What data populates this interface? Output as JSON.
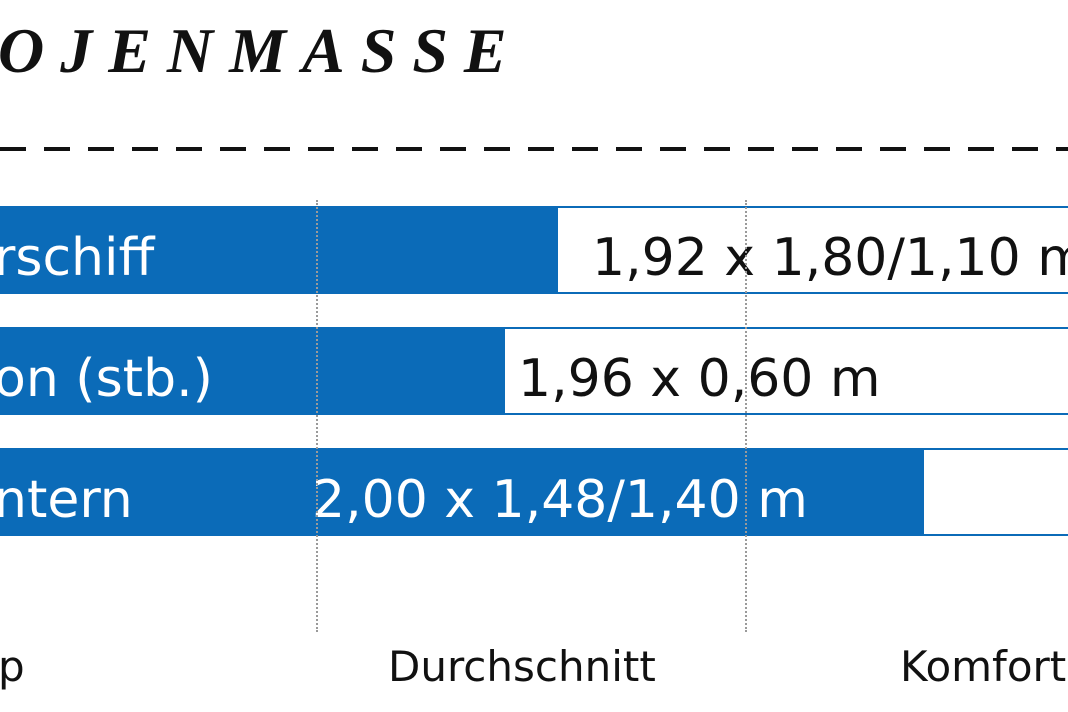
{
  "title": "OJENMASSE",
  "chart_data": {
    "type": "bar",
    "orientation": "horizontal",
    "categories": [
      "rschiff",
      "on (stb.)",
      "ntern"
    ],
    "value_labels": [
      "1,92 x 1,80/1,10 m",
      "1,96 x 0,60 m",
      "2,00 x 1,48/1,40 m"
    ],
    "values": [
      0.52,
      0.47,
      0.86
    ],
    "x_ticks": [
      "p",
      "Durchschnitt",
      "Komfort"
    ],
    "reference_lines": [
      "Durchschnitt"
    ],
    "colors": {
      "bar": "#0b6bb8",
      "track": "#ffffff",
      "grid": "#9a9a9a"
    }
  }
}
